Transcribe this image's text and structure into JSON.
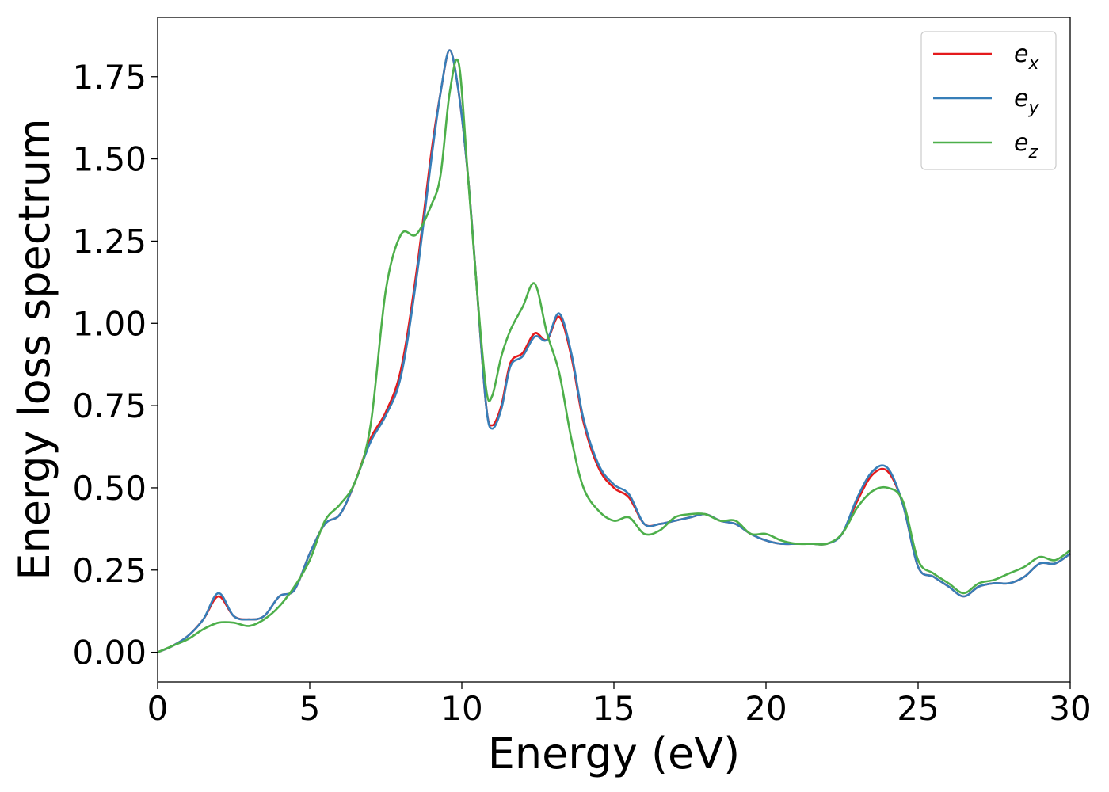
{
  "chart_data": {
    "type": "line",
    "xlabel": "Energy (eV)",
    "ylabel": "Energy loss spectrum",
    "xlim": [
      0,
      30
    ],
    "ylim": [
      -0.09,
      1.93
    ],
    "xticks": [
      0,
      5,
      10,
      15,
      20,
      25,
      30
    ],
    "xtick_labels": [
      "0",
      "5",
      "10",
      "15",
      "20",
      "25",
      "30"
    ],
    "yticks": [
      0.0,
      0.25,
      0.5,
      0.75,
      1.0,
      1.25,
      1.5,
      1.75
    ],
    "ytick_labels": [
      "0.00",
      "0.25",
      "0.50",
      "0.75",
      "1.00",
      "1.25",
      "1.50",
      "1.75"
    ],
    "grid": false,
    "legend_position": "top-right",
    "colors": {
      "e_x": "#e41a1c",
      "e_y": "#377eb8",
      "e_z": "#4daf4a"
    },
    "x": [
      0,
      0.5,
      1,
      1.5,
      2,
      2.5,
      3,
      3.5,
      4,
      4.5,
      5,
      5.5,
      6,
      6.5,
      7,
      7.5,
      8,
      8.5,
      9,
      9.3,
      9.6,
      9.9,
      10.2,
      10.5,
      10.8,
      11,
      11.3,
      11.6,
      12,
      12.4,
      12.8,
      13.2,
      13.6,
      14,
      14.5,
      15,
      15.5,
      16,
      16.5,
      17,
      17.5,
      18,
      18.5,
      19,
      19.5,
      20,
      20.5,
      21,
      21.5,
      22,
      22.5,
      23,
      23.5,
      24,
      24.5,
      25,
      25.5,
      26,
      26.5,
      27,
      27.5,
      28,
      28.5,
      29,
      29.5,
      30
    ],
    "series": [
      {
        "name_base": "e",
        "name_sub": "x",
        "values": [
          0.0,
          0.02,
          0.05,
          0.1,
          0.17,
          0.11,
          0.1,
          0.11,
          0.17,
          0.19,
          0.3,
          0.39,
          0.42,
          0.52,
          0.65,
          0.73,
          0.86,
          1.15,
          1.52,
          1.7,
          1.83,
          1.7,
          1.45,
          1.1,
          0.75,
          0.69,
          0.75,
          0.88,
          0.91,
          0.97,
          0.95,
          1.02,
          0.9,
          0.7,
          0.56,
          0.5,
          0.47,
          0.39,
          0.39,
          0.4,
          0.41,
          0.42,
          0.4,
          0.39,
          0.36,
          0.34,
          0.33,
          0.33,
          0.33,
          0.33,
          0.36,
          0.46,
          0.54,
          0.55,
          0.45,
          0.26,
          0.23,
          0.2,
          0.17,
          0.2,
          0.21,
          0.21,
          0.23,
          0.27,
          0.27,
          0.3
        ]
      },
      {
        "name_base": "e",
        "name_sub": "y",
        "values": [
          0.0,
          0.02,
          0.05,
          0.1,
          0.18,
          0.11,
          0.1,
          0.11,
          0.17,
          0.19,
          0.3,
          0.39,
          0.42,
          0.52,
          0.64,
          0.72,
          0.84,
          1.13,
          1.5,
          1.7,
          1.83,
          1.7,
          1.45,
          1.1,
          0.75,
          0.68,
          0.74,
          0.87,
          0.9,
          0.96,
          0.95,
          1.03,
          0.91,
          0.71,
          0.57,
          0.51,
          0.48,
          0.39,
          0.39,
          0.4,
          0.41,
          0.42,
          0.4,
          0.39,
          0.36,
          0.34,
          0.33,
          0.33,
          0.33,
          0.33,
          0.36,
          0.47,
          0.55,
          0.56,
          0.45,
          0.26,
          0.23,
          0.2,
          0.17,
          0.2,
          0.21,
          0.21,
          0.23,
          0.27,
          0.27,
          0.3
        ]
      },
      {
        "name_base": "e",
        "name_sub": "z",
        "values": [
          0.0,
          0.02,
          0.04,
          0.07,
          0.09,
          0.09,
          0.08,
          0.1,
          0.14,
          0.2,
          0.28,
          0.4,
          0.45,
          0.52,
          0.69,
          1.1,
          1.27,
          1.27,
          1.36,
          1.45,
          1.7,
          1.79,
          1.45,
          1.1,
          0.8,
          0.78,
          0.9,
          0.98,
          1.05,
          1.12,
          0.97,
          0.85,
          0.65,
          0.5,
          0.43,
          0.4,
          0.41,
          0.36,
          0.37,
          0.41,
          0.42,
          0.42,
          0.4,
          0.4,
          0.36,
          0.36,
          0.34,
          0.33,
          0.33,
          0.33,
          0.36,
          0.44,
          0.49,
          0.5,
          0.46,
          0.28,
          0.24,
          0.21,
          0.18,
          0.21,
          0.22,
          0.24,
          0.26,
          0.29,
          0.28,
          0.31
        ]
      }
    ]
  }
}
